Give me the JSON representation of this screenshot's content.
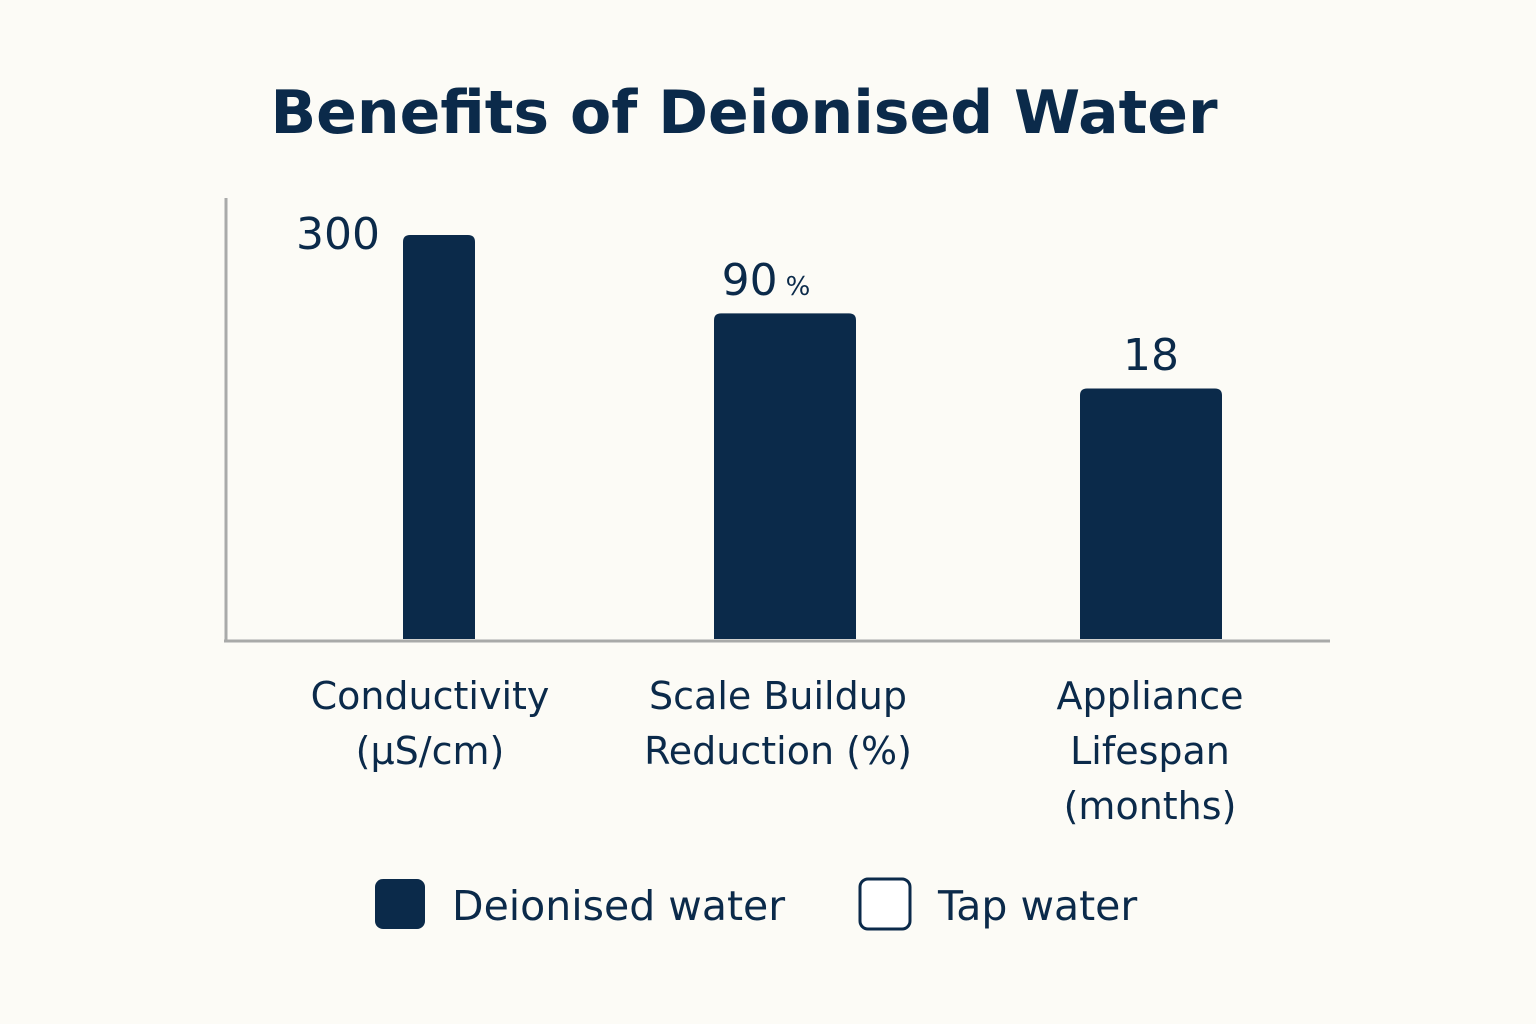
{
  "chart_data": {
    "type": "bar",
    "title": "Benefits of Deionised Water",
    "categories": [
      [
        "Conductivity",
        "(µS/cm)"
      ],
      [
        "Scale Buildup",
        "Reduction (%)"
      ],
      [
        "Appliance",
        "Lifespan",
        "(months)"
      ]
    ],
    "series": [
      {
        "name": "Deionised water",
        "values": [
          300,
          90,
          18
        ],
        "value_labels": [
          "300",
          "90",
          "18"
        ],
        "value_suffixes": [
          "",
          "%",
          ""
        ]
      }
    ],
    "legend": [
      {
        "name": "Deionised water",
        "style": "filled"
      },
      {
        "name": "Tap water",
        "style": "outline"
      }
    ],
    "bar_heights_relative": [
      1.0,
      0.806,
      0.62
    ],
    "grid": false,
    "legend_position": "bottom",
    "colors": {
      "bar": "#0b2a4a",
      "text": "#0b2a4a",
      "axis": "#a9aaa9",
      "background": "#fcfbf6"
    }
  }
}
